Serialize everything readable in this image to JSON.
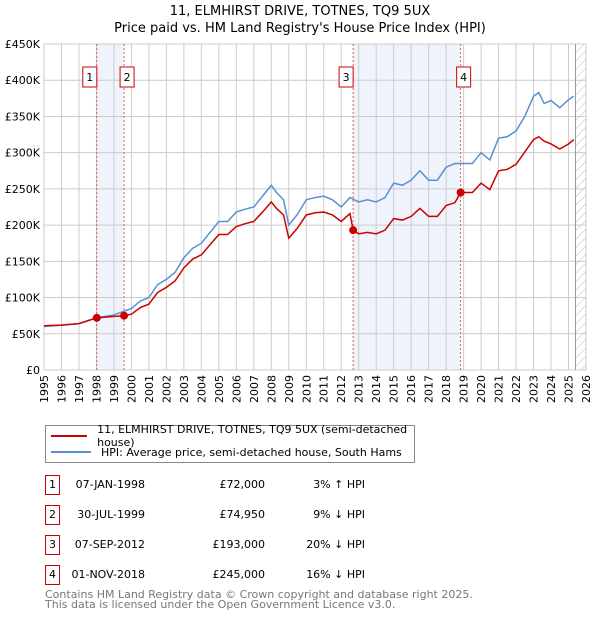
{
  "chart_data": {
    "type": "line",
    "title": "11, ELMHIRST DRIVE, TOTNES, TQ9 5UX",
    "subtitle": "Price paid vs. HM Land Registry's House Price Index (HPI)",
    "xlim": [
      1995,
      2026
    ],
    "ylim": [
      0,
      450000
    ],
    "y_ticks": [
      {
        "v": 0,
        "label": "£0"
      },
      {
        "v": 50000,
        "label": "£50K"
      },
      {
        "v": 100000,
        "label": "£100K"
      },
      {
        "v": 150000,
        "label": "£150K"
      },
      {
        "v": 200000,
        "label": "£200K"
      },
      {
        "v": 250000,
        "label": "£250K"
      },
      {
        "v": 300000,
        "label": "£300K"
      },
      {
        "v": 350000,
        "label": "£350K"
      },
      {
        "v": 400000,
        "label": "£400K"
      },
      {
        "v": 450000,
        "label": "£450K"
      }
    ],
    "x_ticks": [
      "1995",
      "1996",
      "1997",
      "1998",
      "1999",
      "2000",
      "2001",
      "2002",
      "2003",
      "2004",
      "2005",
      "2006",
      "2007",
      "2008",
      "2009",
      "2010",
      "2011",
      "2012",
      "2013",
      "2014",
      "2015",
      "2016",
      "2017",
      "2018",
      "2019",
      "2020",
      "2021",
      "2022",
      "2023",
      "2024",
      "2025",
      "2026"
    ],
    "grid": true,
    "series": [
      {
        "name": "11, ELMHIRST DRIVE, TOTNES, TQ9 5UX (semi-detached house)",
        "color": "#cc0000",
        "x": [
          1995,
          1996,
          1997,
          1998.02,
          1999,
          1999.58,
          2000,
          2000.5,
          2001,
          2001.5,
          2002,
          2002.5,
          2003,
          2003.5,
          2004,
          2004.5,
          2005,
          2005.5,
          2006,
          2006.5,
          2007,
          2007.5,
          2008,
          2008.3,
          2008.7,
          2009,
          2009.5,
          2010,
          2010.5,
          2011,
          2011.5,
          2012,
          2012.5,
          2012.68,
          2013,
          2013.5,
          2014,
          2014.5,
          2015,
          2015.5,
          2016,
          2016.5,
          2017,
          2017.5,
          2018,
          2018.5,
          2018.83,
          2019,
          2019.5,
          2020,
          2020.5,
          2021,
          2021.5,
          2022,
          2022.5,
          2023,
          2023.3,
          2023.6,
          2024,
          2024.5,
          2025,
          2025.3
        ],
        "y": [
          61000,
          62000,
          64000,
          72000,
          74000,
          74950,
          77000,
          86000,
          91000,
          107000,
          114000,
          123000,
          141000,
          153000,
          159000,
          173000,
          187000,
          187000,
          198000,
          202000,
          205000,
          218000,
          232000,
          223000,
          214000,
          182000,
          196000,
          214000,
          217000,
          218000,
          214000,
          205000,
          216000,
          193000,
          188000,
          190000,
          188000,
          193000,
          209000,
          207000,
          212000,
          223000,
          212000,
          212000,
          227000,
          231000,
          245000,
          245000,
          245000,
          258000,
          249000,
          275000,
          277000,
          284000,
          301000,
          318000,
          322000,
          316000,
          312000,
          305000,
          312000,
          318000
        ]
      },
      {
        "name": "HPI: Average price, semi-detached house, South Hams",
        "color": "#5b8fd4",
        "x": [
          1995,
          1996,
          1997,
          1998,
          1999,
          2000,
          2000.5,
          2001,
          2001.5,
          2002,
          2002.5,
          2003,
          2003.5,
          2004,
          2004.5,
          2005,
          2005.5,
          2006,
          2006.5,
          2007,
          2007.5,
          2008,
          2008.3,
          2008.7,
          2009,
          2009.5,
          2010,
          2010.5,
          2011,
          2011.5,
          2012,
          2012.5,
          2013,
          2013.5,
          2014,
          2014.5,
          2015,
          2015.5,
          2016,
          2016.5,
          2017,
          2017.5,
          2018,
          2018.5,
          2019,
          2019.5,
          2020,
          2020.5,
          2021,
          2021.5,
          2022,
          2022.5,
          2023,
          2023.3,
          2023.6,
          2024,
          2024.5,
          2025,
          2025.3
        ],
        "y": [
          60000,
          62000,
          64000,
          72000,
          76000,
          85000,
          95000,
          100000,
          118000,
          125000,
          135000,
          155000,
          168000,
          175000,
          190000,
          205000,
          205000,
          218000,
          222000,
          225000,
          240000,
          255000,
          245000,
          235000,
          200000,
          215000,
          235000,
          238000,
          240000,
          235000,
          225000,
          238000,
          232000,
          235000,
          232000,
          238000,
          258000,
          255000,
          262000,
          275000,
          262000,
          262000,
          280000,
          285000,
          285000,
          285000,
          300000,
          290000,
          320000,
          322000,
          330000,
          350000,
          378000,
          383000,
          368000,
          372000,
          362000,
          373000,
          378000
        ]
      }
    ],
    "sales": [
      {
        "id": "1",
        "date": "07-JAN-1998",
        "x": 1998.02,
        "price": "£72,000",
        "value": 72000,
        "hpi": "3% ↑ HPI"
      },
      {
        "id": "2",
        "date": "30-JUL-1999",
        "x": 1999.58,
        "price": "£74,950",
        "value": 74950,
        "hpi": "9% ↓ HPI"
      },
      {
        "id": "3",
        "date": "07-SEP-2012",
        "x": 2012.68,
        "price": "£193,000",
        "value": 193000,
        "hpi": "20% ↓ HPI"
      },
      {
        "id": "4",
        "date": "01-NOV-2018",
        "x": 2018.83,
        "price": "£245,000",
        "value": 245000,
        "hpi": "16% ↓ HPI"
      }
    ],
    "shaded": [
      [
        "1",
        "2"
      ],
      [
        "3",
        "4"
      ]
    ],
    "forecast_start": 2025.4
  },
  "footer": {
    "line1": "Contains HM Land Registry data © Crown copyright and database right 2025.",
    "line2": "This data is licensed under the Open Government Licence v3.0."
  }
}
